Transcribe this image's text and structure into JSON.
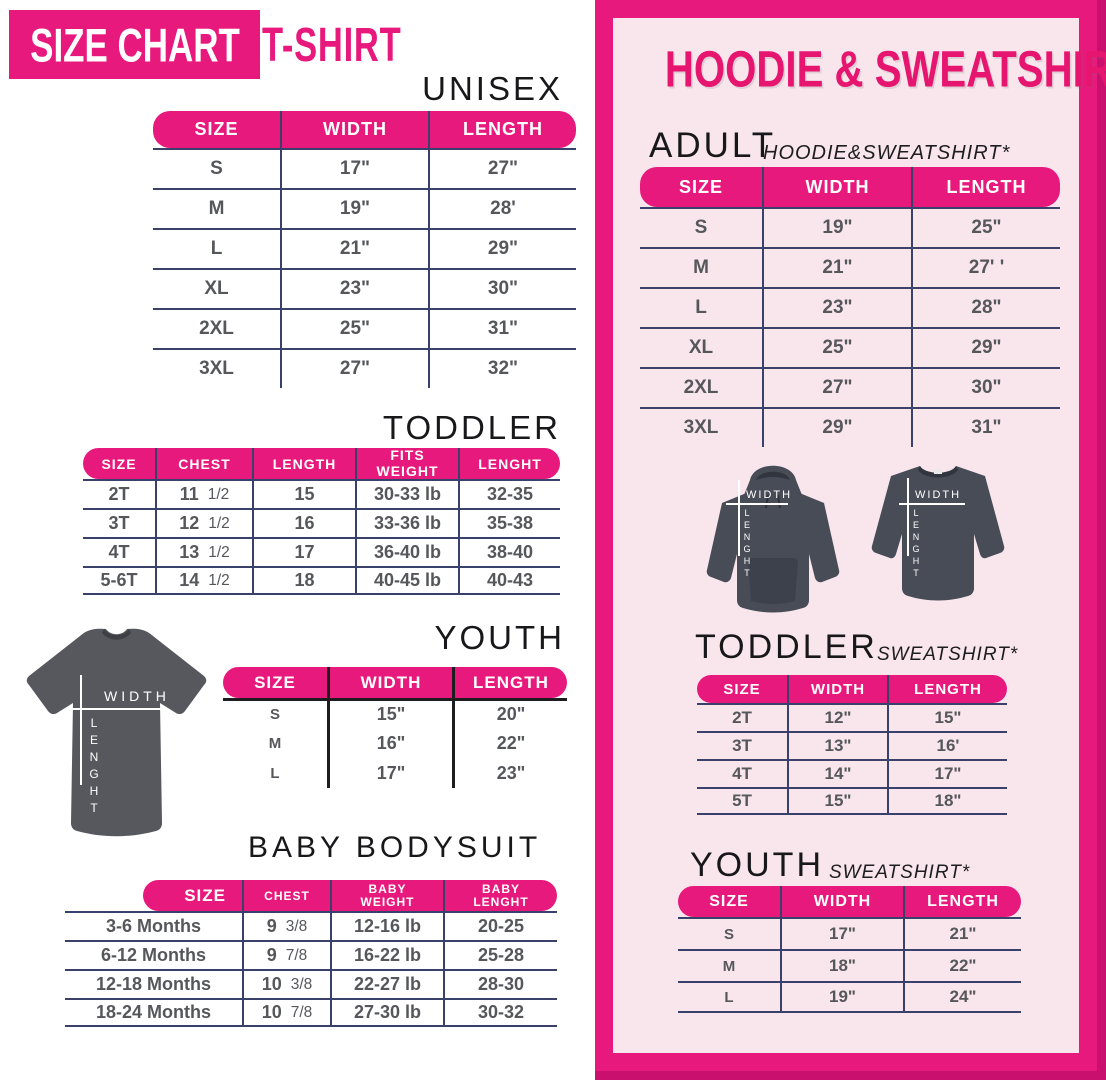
{
  "left": {
    "badge_title": "SIZE CHART",
    "product_title": "T-SHIRT",
    "tshirt_graphic": {
      "width_label": "WIDTH",
      "length_label": "LENGHT"
    },
    "sections": {
      "unisex": {
        "heading": "UNISEX",
        "table": {
          "headers": [
            "SIZE",
            "WIDTH",
            "LENGTH"
          ],
          "rows": [
            [
              "S",
              "17\"",
              "27\""
            ],
            [
              "M",
              "19\"",
              "28'"
            ],
            [
              "L",
              "21\"",
              "29\""
            ],
            [
              "XL",
              "23\"",
              "30\""
            ],
            [
              "2XL",
              "25\"",
              "31\""
            ],
            [
              "3XL",
              "27\"",
              "32\""
            ]
          ]
        }
      },
      "toddler": {
        "heading": "TODDLER",
        "table": {
          "headers": [
            "SIZE",
            "CHEST",
            "LENGTH",
            "FITS WEIGHT",
            "LENGHT"
          ],
          "rows": [
            [
              "2T",
              "11 1/2",
              "15",
              "30-33 lb",
              "32-35"
            ],
            [
              "3T",
              "12 1/2",
              "16",
              "33-36 lb",
              "35-38"
            ],
            [
              "4T",
              "13 1/2",
              "17",
              "36-40 lb",
              "38-40"
            ],
            [
              "5-6T",
              "14 1/2",
              "18",
              "40-45 lb",
              "40-43"
            ]
          ]
        }
      },
      "youth": {
        "heading": "YOUTH",
        "table": {
          "headers": [
            "SIZE",
            "WIDTH",
            "LENGTH"
          ],
          "rows": [
            [
              "S",
              "15\"",
              "20\""
            ],
            [
              "M",
              "16\"",
              "22\""
            ],
            [
              "L",
              "17\"",
              "23\""
            ]
          ]
        }
      },
      "baby": {
        "heading": "BABY BODYSUIT",
        "table": {
          "headers": [
            "SIZE",
            "CHEST",
            "BABY WEIGHT",
            "BABY LENGHT"
          ],
          "rows": [
            [
              "3-6 Months",
              "9 3/8",
              "12-16 lb",
              "20-25"
            ],
            [
              "6-12 Months",
              "9 7/8",
              "16-22 lb",
              "25-28"
            ],
            [
              "12-18 Months",
              "10 3/8",
              "22-27 lb",
              "28-30"
            ],
            [
              "18-24 Months",
              "10 7/8",
              "27-30 lb",
              "30-32"
            ]
          ]
        }
      }
    }
  },
  "right": {
    "title": "HOODIE & SWEATSHIRT",
    "garment_graphic": {
      "width_label": "WIDTH",
      "length_label": "LENGHT"
    },
    "sections": {
      "adult": {
        "heading": "ADULT",
        "subheading": "HOODIE&SWEATSHIRT*",
        "table": {
          "headers": [
            "SIZE",
            "WIDTH",
            "LENGTH"
          ],
          "rows": [
            [
              "S",
              "19\"",
              "25\""
            ],
            [
              "M",
              "21\"",
              "27' '"
            ],
            [
              "L",
              "23\"",
              "28\""
            ],
            [
              "XL",
              "25\"",
              "29\""
            ],
            [
              "2XL",
              "27\"",
              "30\""
            ],
            [
              "3XL",
              "29\"",
              "31\""
            ]
          ]
        }
      },
      "toddler": {
        "heading": "TODDLER",
        "subheading": "SWEATSHIRT*",
        "table": {
          "headers": [
            "SIZE",
            "WIDTH",
            "LENGTH"
          ],
          "rows": [
            [
              "2T",
              "12\"",
              "15\""
            ],
            [
              "3T",
              "13\"",
              "16'"
            ],
            [
              "4T",
              "14\"",
              "17\""
            ],
            [
              "5T",
              "15\"",
              "18\""
            ]
          ]
        }
      },
      "youth": {
        "heading": "YOUTH",
        "subheading": "SWEATSHIRT*",
        "table": {
          "headers": [
            "SIZE",
            "WIDTH",
            "LENGTH"
          ],
          "rows": [
            [
              "S",
              "17\"",
              "21\""
            ],
            [
              "M",
              "18\"",
              "22\""
            ],
            [
              "L",
              "19\"",
              "24\""
            ]
          ]
        }
      }
    }
  },
  "colors": {
    "pink": "#E8197D",
    "dark_pink": "#C9106E",
    "pale_pink": "#F8E6EC",
    "line_navy": "#39406A",
    "line_black": "#1D1D20",
    "text_gray": "#55575B",
    "garment_gray": "#56585D",
    "garment_slate": "#474C57"
  }
}
